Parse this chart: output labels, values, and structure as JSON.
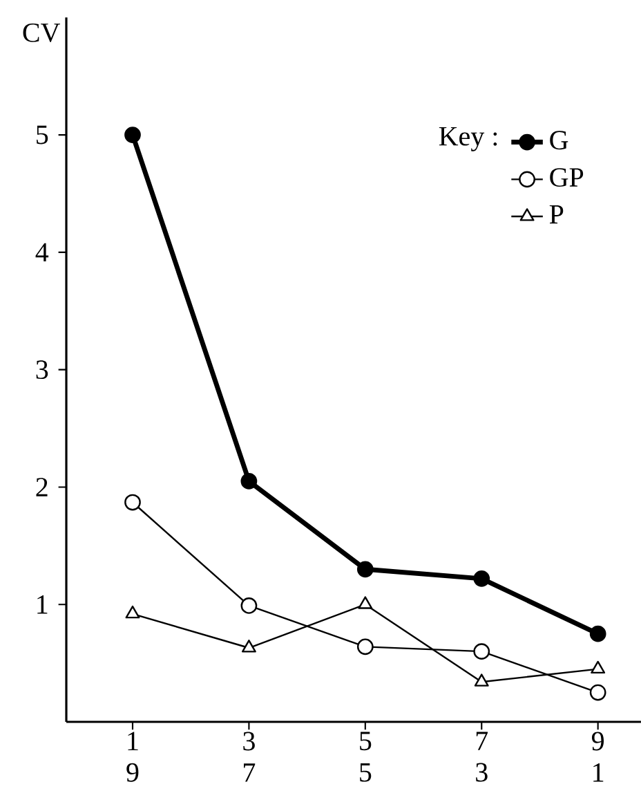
{
  "chart_data": {
    "type": "line",
    "ylabel": "CV",
    "legend_title": "Key :",
    "categories": [
      "1 9",
      "3 7",
      "5 5",
      "7 3",
      "9 1"
    ],
    "ylim": [
      0,
      6
    ],
    "yticks": [
      1,
      2,
      3,
      4,
      5
    ],
    "legend": "top right",
    "series": [
      {
        "name": "G",
        "color": "#000000",
        "marker": "circle",
        "values": [
          5.0,
          2.05,
          1.3,
          1.22,
          0.75
        ]
      },
      {
        "name": "GP",
        "color": "#000000",
        "marker": "circle",
        "values": [
          1.87,
          0.99,
          0.64,
          0.6,
          0.25
        ]
      },
      {
        "name": "P",
        "color": "#000000",
        "marker": "triangle",
        "values": [
          0.92,
          0.63,
          1.0,
          0.34,
          0.45
        ]
      }
    ]
  }
}
